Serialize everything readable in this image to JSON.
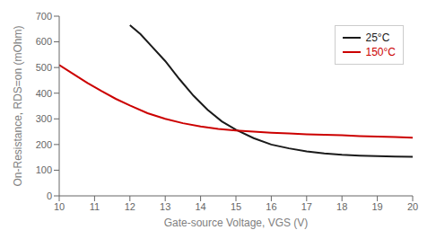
{
  "chart_data": {
    "type": "line",
    "xlabel": "Gate-source Voltage, VGS (V)",
    "ylabel": "On-Resistance, RDS=on (mOhm)",
    "xlim": [
      10,
      20
    ],
    "ylim": [
      0,
      700
    ],
    "xticks": [
      10,
      11,
      12,
      13,
      14,
      15,
      16,
      17,
      18,
      19,
      20
    ],
    "yticks": [
      0,
      100,
      200,
      300,
      400,
      500,
      600,
      700
    ],
    "series": [
      {
        "name": "25°C",
        "color": "#1a1a1a",
        "x": [
          12.0,
          12.3,
          12.6,
          13.0,
          13.4,
          13.8,
          14.2,
          14.6,
          15.0,
          15.5,
          16.0,
          16.5,
          17.0,
          17.5,
          18.0,
          18.5,
          19.0,
          19.5,
          20.0
        ],
        "values": [
          665,
          630,
          585,
          525,
          455,
          390,
          335,
          290,
          258,
          225,
          200,
          185,
          173,
          165,
          160,
          157,
          155,
          153,
          152
        ]
      },
      {
        "name": "150°C",
        "color": "#cc0000",
        "x": [
          10.0,
          10.4,
          10.8,
          11.2,
          11.6,
          12.0,
          12.5,
          13.0,
          13.5,
          14.0,
          14.5,
          15.0,
          15.5,
          16.0,
          16.5,
          17.0,
          17.5,
          18.0,
          18.5,
          19.0,
          19.5,
          20.0
        ],
        "values": [
          510,
          475,
          440,
          408,
          378,
          352,
          322,
          300,
          283,
          270,
          261,
          255,
          250,
          246,
          243,
          240,
          238,
          236,
          233,
          231,
          229,
          227
        ]
      }
    ],
    "legend": "upper right",
    "grid": false
  }
}
